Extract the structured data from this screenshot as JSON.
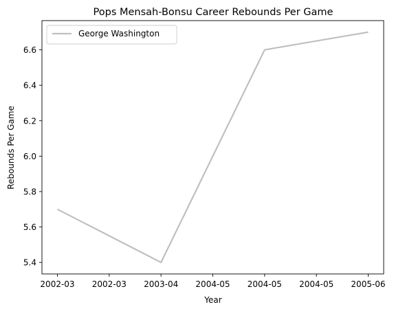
{
  "chart_data": {
    "type": "line",
    "title": "Pops Mensah-Bonsu Career Rebounds Per Game",
    "xlabel": "Year",
    "ylabel": "Rebounds Per Game",
    "x_tick_labels": [
      "2002-03",
      "2002-03",
      "2003-04",
      "2004-05",
      "2004-05",
      "2004-05",
      "2005-06"
    ],
    "y_ticks": [
      5.4,
      5.6,
      5.8,
      6.0,
      6.2,
      6.4,
      6.6
    ],
    "ylim": [
      5.335,
      6.765
    ],
    "grid": false,
    "legend_position": "upper-left",
    "series": [
      {
        "name": "George Washington",
        "color": "#bfbfbf",
        "x": [
          "2002-03",
          "2003-04",
          "2004-05",
          "2005-06"
        ],
        "values": [
          5.7,
          5.4,
          6.6,
          6.7
        ]
      }
    ]
  }
}
